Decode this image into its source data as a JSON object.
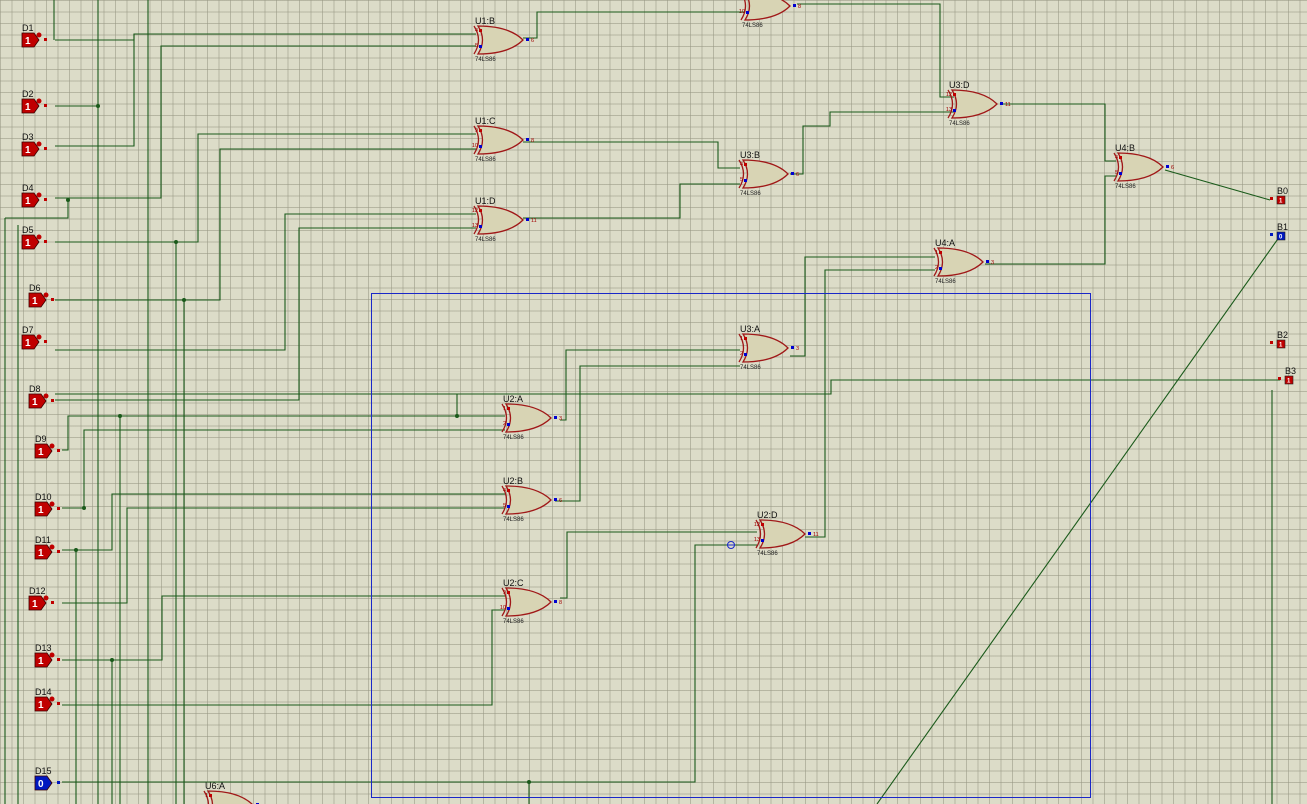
{
  "schematic": {
    "colors": {
      "background": "#dcdcc8",
      "wire": "#1a5a1a",
      "gate_body": "#d8d4b4",
      "gate_outline": "#a01818",
      "logic_high": "#c00000",
      "logic_low": "#0018c0",
      "selection_box": "#1a28c8"
    },
    "inputs": [
      {
        "name": "D1",
        "value": "1",
        "state": "high"
      },
      {
        "name": "D2",
        "value": "1",
        "state": "high"
      },
      {
        "name": "D3",
        "value": "1",
        "state": "high"
      },
      {
        "name": "D4",
        "value": "1",
        "state": "high"
      },
      {
        "name": "D5",
        "value": "1",
        "state": "high"
      },
      {
        "name": "D6",
        "value": "1",
        "state": "high"
      },
      {
        "name": "D7",
        "value": "1",
        "state": "high"
      },
      {
        "name": "D8",
        "value": "1",
        "state": "high"
      },
      {
        "name": "D9",
        "value": "1",
        "state": "high"
      },
      {
        "name": "D10",
        "value": "1",
        "state": "high"
      },
      {
        "name": "D11",
        "value": "1",
        "state": "high"
      },
      {
        "name": "D12",
        "value": "1",
        "state": "high"
      },
      {
        "name": "D13",
        "value": "1",
        "state": "high"
      },
      {
        "name": "D14",
        "value": "1",
        "state": "high"
      },
      {
        "name": "D15",
        "value": "0",
        "state": "low"
      }
    ],
    "gates": [
      {
        "ref": "U1:B",
        "part": "74LS86",
        "pin_a": "4",
        "pin_b": "5",
        "pin_out": "6"
      },
      {
        "ref": "U1:C",
        "part": "74LS86",
        "pin_a": "9",
        "pin_b": "10",
        "pin_out": "8"
      },
      {
        "ref": "U1:D",
        "part": "74LS86",
        "pin_a": "12",
        "pin_b": "13",
        "pin_out": "11"
      },
      {
        "ref": "",
        "part": "74LS86",
        "pin_a": "",
        "pin_b": "10",
        "pin_out": "8"
      },
      {
        "ref": "U3:D",
        "part": "74LS86",
        "pin_a": "12",
        "pin_b": "13",
        "pin_out": "11"
      },
      {
        "ref": "U3:B",
        "part": "74LS86",
        "pin_a": "4",
        "pin_b": "5",
        "pin_out": "6"
      },
      {
        "ref": "U4:B",
        "part": "74LS86",
        "pin_a": "4",
        "pin_b": "5",
        "pin_out": "6"
      },
      {
        "ref": "U4:A",
        "part": "74LS86",
        "pin_a": "1",
        "pin_b": "2",
        "pin_out": "3"
      },
      {
        "ref": "U3:A",
        "part": "74LS86",
        "pin_a": "1",
        "pin_b": "2",
        "pin_out": "3"
      },
      {
        "ref": "U2:A",
        "part": "74LS86",
        "pin_a": "1",
        "pin_b": "2",
        "pin_out": "3"
      },
      {
        "ref": "U2:B",
        "part": "74LS86",
        "pin_a": "4",
        "pin_b": "5",
        "pin_out": "6"
      },
      {
        "ref": "U2:D",
        "part": "74LS86",
        "pin_a": "12",
        "pin_b": "13",
        "pin_out": "11"
      },
      {
        "ref": "U2:C",
        "part": "74LS86",
        "pin_a": "9",
        "pin_b": "10",
        "pin_out": "8"
      },
      {
        "ref": "U6:A",
        "part": "",
        "pin_a": "1",
        "pin_b": "",
        "pin_out": ""
      }
    ],
    "outputs": [
      {
        "name": "B0",
        "value": "1",
        "state": "high"
      },
      {
        "name": "B1",
        "value": "0",
        "state": "low"
      },
      {
        "name": "B2",
        "value": "1",
        "state": "high"
      },
      {
        "name": "B3",
        "value": "1",
        "state": "high"
      }
    ]
  }
}
